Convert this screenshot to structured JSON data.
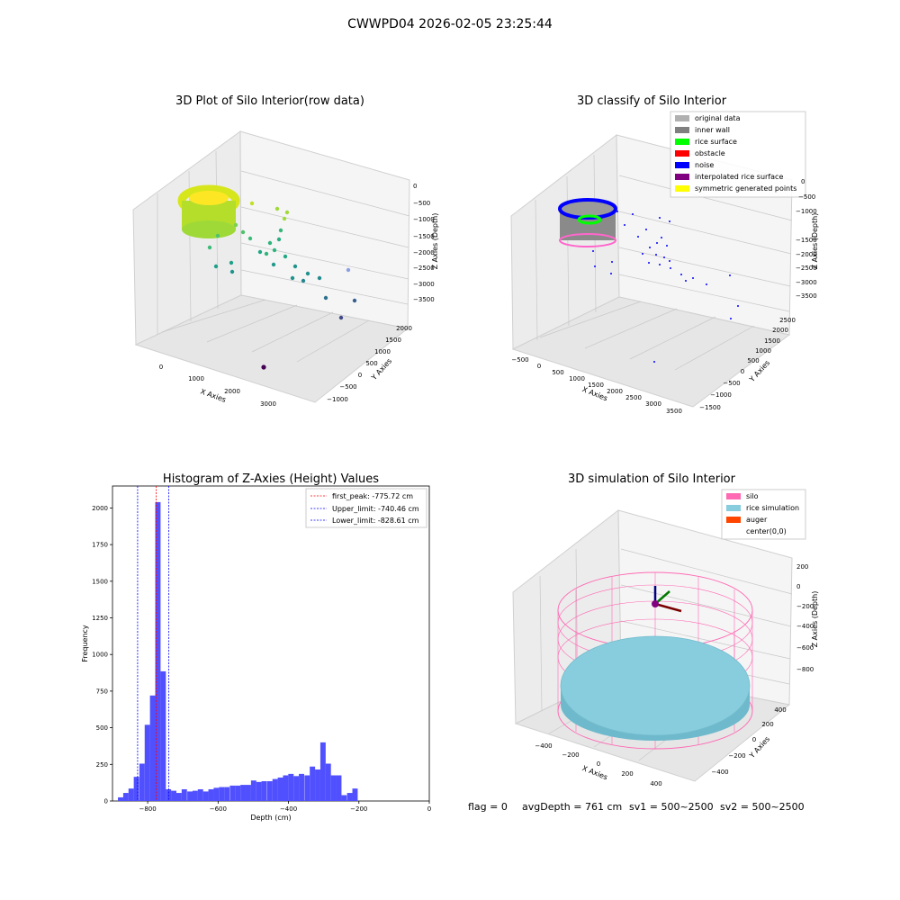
{
  "suptitle": "CWWPD04 2026-02-05 23:25:44",
  "footer": {
    "flag": "flag = 0",
    "avg": "avgDepth = 761 cm",
    "sv1": "sv1 = 500~2500",
    "sv2": "sv2 = 500~2500"
  },
  "colors": {
    "hist": "#5050ff",
    "peak": "#ff0000",
    "limits": "#0000ff",
    "pane": "#f2f2f2",
    "silo": "#ff69b4",
    "rice": "#87cdde",
    "auger": "#ff4500",
    "original": "#b0b0b0",
    "inner_wall": "#808080",
    "rice_surface": "#00ff00",
    "obstacle": "#ff0000",
    "noise": "#0000ff",
    "interp": "#800080",
    "sym": "#ffff00"
  },
  "chart_data": [
    {
      "type": "scatter",
      "projection": "3d",
      "title": "3D Plot of Silo Interior(row data)",
      "xlabel": "X Axies",
      "ylabel": "Y Axies",
      "zlabel": "Z Axies (Depth)",
      "xticks": [
        "0",
        "1000",
        "2000",
        "3000"
      ],
      "yticks": [
        "−1000",
        "−500",
        "0",
        "500",
        "1000",
        "1500",
        "2000"
      ],
      "zticks": [
        "0",
        "−500",
        "−1000",
        "−1500",
        "−2000",
        "−2500",
        "−3000",
        "−3500"
      ],
      "colormap": "viridis (by depth)",
      "grid": true
    },
    {
      "type": "scatter",
      "projection": "3d",
      "title": "3D classify of Silo Interior",
      "xlabel": "X Axies",
      "ylabel": "Y Axies",
      "zlabel": "Z Axies (Depth)",
      "xticks": [
        "−500",
        "0",
        "500",
        "1000",
        "1500",
        "2000",
        "2500",
        "3000",
        "3500"
      ],
      "yticks": [
        "−1500",
        "−1000",
        "−500",
        "0",
        "500",
        "1000",
        "1500",
        "2000",
        "2500"
      ],
      "zticks": [
        "0",
        "−500",
        "−1000",
        "−1500",
        "−2000",
        "−2500",
        "−3000",
        "−3500"
      ],
      "legend_position": "top-right",
      "legend": [
        {
          "label": "original data",
          "color": "#b0b0b0"
        },
        {
          "label": "inner wall",
          "color": "#808080"
        },
        {
          "label": "rice surface",
          "color": "#00ff00"
        },
        {
          "label": "obstacle",
          "color": "#ff0000"
        },
        {
          "label": "noise",
          "color": "#0000ff"
        },
        {
          "label": "interpolated rice surface",
          "color": "#800080"
        },
        {
          "label": "symmetric generated points",
          "color": "#ffff00"
        }
      ],
      "grid": true
    },
    {
      "type": "bar",
      "title": "Histogram of Z-Axies (Height) Values",
      "xlabel": "Depth (cm)",
      "ylabel": "Frequency",
      "xlim": [
        -900,
        0
      ],
      "ylim": [
        0,
        2150
      ],
      "xticks": [
        -800,
        -600,
        -400,
        -200,
        0
      ],
      "yticks": [
        0,
        250,
        500,
        750,
        1000,
        1250,
        1500,
        1750,
        2000
      ],
      "bin_width": 15.1,
      "bins": [
        {
          "x": -877,
          "count": 25
        },
        {
          "x": -862,
          "count": 55
        },
        {
          "x": -847,
          "count": 85
        },
        {
          "x": -832,
          "count": 165
        },
        {
          "x": -816,
          "count": 255
        },
        {
          "x": -801,
          "count": 520
        },
        {
          "x": -786,
          "count": 720
        },
        {
          "x": -771,
          "count": 2040
        },
        {
          "x": -756,
          "count": 885
        },
        {
          "x": -741,
          "count": 80
        },
        {
          "x": -726,
          "count": 70
        },
        {
          "x": -711,
          "count": 55
        },
        {
          "x": -696,
          "count": 80
        },
        {
          "x": -680,
          "count": 65
        },
        {
          "x": -665,
          "count": 70
        },
        {
          "x": -650,
          "count": 80
        },
        {
          "x": -635,
          "count": 65
        },
        {
          "x": -620,
          "count": 80
        },
        {
          "x": -605,
          "count": 90
        },
        {
          "x": -590,
          "count": 95
        },
        {
          "x": -575,
          "count": 95
        },
        {
          "x": -559,
          "count": 105
        },
        {
          "x": -544,
          "count": 105
        },
        {
          "x": -529,
          "count": 110
        },
        {
          "x": -514,
          "count": 110
        },
        {
          "x": -499,
          "count": 140
        },
        {
          "x": -484,
          "count": 130
        },
        {
          "x": -469,
          "count": 135
        },
        {
          "x": -453,
          "count": 135
        },
        {
          "x": -438,
          "count": 150
        },
        {
          "x": -423,
          "count": 160
        },
        {
          "x": -408,
          "count": 175
        },
        {
          "x": -393,
          "count": 185
        },
        {
          "x": -378,
          "count": 170
        },
        {
          "x": -363,
          "count": 185
        },
        {
          "x": -347,
          "count": 175
        },
        {
          "x": -332,
          "count": 235
        },
        {
          "x": -317,
          "count": 215
        },
        {
          "x": -302,
          "count": 400
        },
        {
          "x": -287,
          "count": 255
        },
        {
          "x": -272,
          "count": 175
        },
        {
          "x": -257,
          "count": 175
        },
        {
          "x": -242,
          "count": 40
        },
        {
          "x": -226,
          "count": 55
        },
        {
          "x": -211,
          "count": 85
        }
      ],
      "vlines": [
        {
          "label": "first_peak: -775.72 cm",
          "x": -775.72,
          "color": "#ff0000"
        },
        {
          "label": "Upper_limit: -740.46 cm",
          "x": -740.46,
          "color": "#0000ff"
        },
        {
          "label": "Lower_limit: -828.61 cm",
          "x": -828.61,
          "color": "#0000ff"
        }
      ],
      "legend_position": "top-right",
      "grid": false
    },
    {
      "type": "scatter",
      "projection": "3d",
      "title": "3D simulation of Silo Interior",
      "xlabel": "X Axies",
      "ylabel": "Y Axies",
      "zlabel": "Z Axies (Depth)",
      "xticks": [
        "−400",
        "−200",
        "0",
        "200",
        "400"
      ],
      "yticks": [
        "−400",
        "−200",
        "0",
        "200",
        "400"
      ],
      "zticks": [
        "200",
        "0",
        "−200",
        "−400",
        "−600",
        "−800"
      ],
      "legend_position": "top-right",
      "legend": [
        {
          "label": "silo",
          "color": "#ff69b4"
        },
        {
          "label": "rice simulation",
          "color": "#87cdde"
        },
        {
          "label": "auger",
          "color": "#ff4500"
        },
        {
          "label": "center(0,0)",
          "color": ""
        }
      ],
      "grid": true
    }
  ]
}
